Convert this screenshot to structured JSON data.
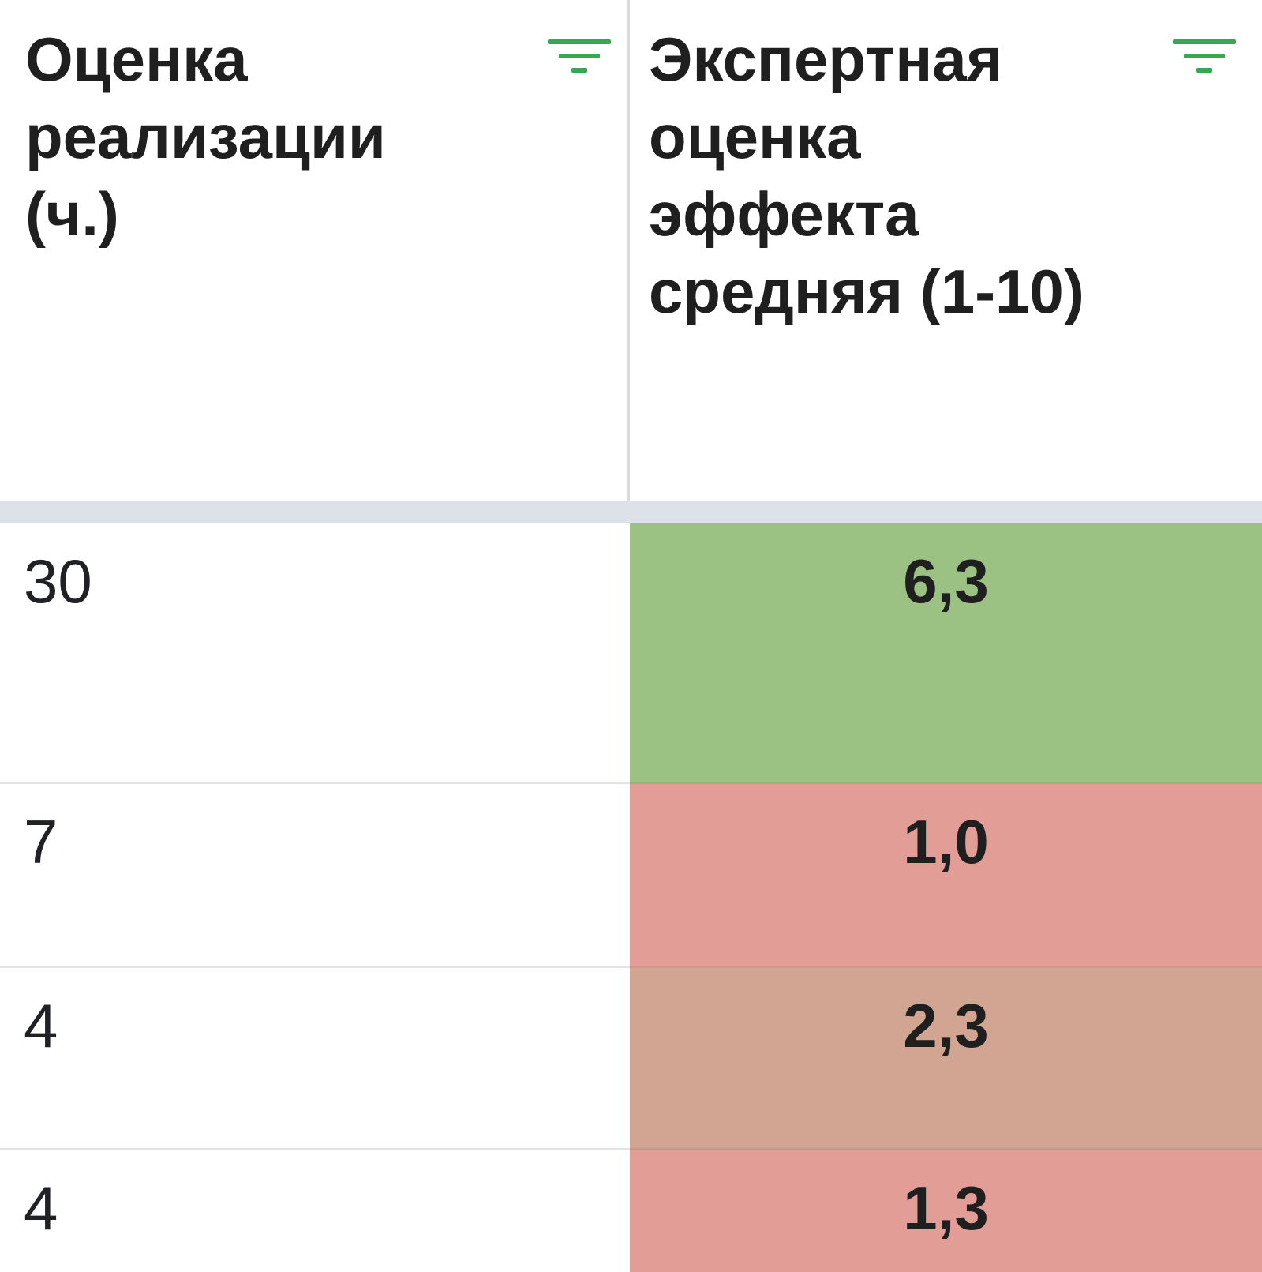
{
  "columns": [
    {
      "header": "Оценка\nреализации\n(ч.)",
      "filter_icon": "filter-icon"
    },
    {
      "header": "Экспертная\nоценка\nэффекта\nсредняя (1-10)",
      "filter_icon": "filter-icon"
    }
  ],
  "accent_color": "#34a853",
  "rows": [
    {
      "hours": "30",
      "effect": "6,3",
      "effect_color": "#9bc183"
    },
    {
      "hours": "7",
      "effect": "1,0",
      "effect_color": "#e29d97"
    },
    {
      "hours": "4",
      "effect": "2,3",
      "effect_color": "#d1a591"
    },
    {
      "hours": "4",
      "effect": "1,3",
      "effect_color": "#e19d96"
    }
  ]
}
